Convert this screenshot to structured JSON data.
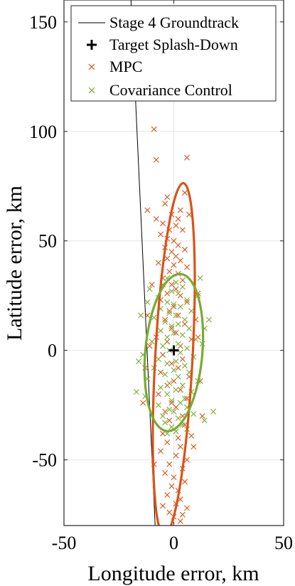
{
  "chart_data": {
    "type": "scatter",
    "xlabel": "Longitude error, km",
    "ylabel": "Latitude error, km",
    "xlim": [
      -50,
      50
    ],
    "ylim": [
      -80,
      160
    ],
    "xticks": [
      -50,
      0,
      50
    ],
    "yticks": [
      -50,
      0,
      50,
      100,
      150
    ],
    "grid": true,
    "legend_position": "top",
    "colors": {
      "mpc": "#d95319",
      "cov": "#77ac30",
      "groundtrack": "#000000",
      "target": "#000000"
    },
    "groundtrack": {
      "name": "Stage 4 Groundtrack",
      "x": [
        -19.5,
        -8.5
      ],
      "y": [
        160,
        -80
      ]
    },
    "target": {
      "name": "Target Splash-Down",
      "x": 0,
      "y": 0
    },
    "ellipses": [
      {
        "series": "MPC",
        "cx": 0,
        "cy": -4,
        "rx": 8.5,
        "ry": 80.5,
        "tilt_deg": 3.1
      },
      {
        "series": "Covariance Control",
        "cx": 0,
        "cy": -1,
        "rx": 13,
        "ry": 36,
        "tilt_deg": 5
      }
    ],
    "series": [
      {
        "name": "MPC",
        "points": [
          [
            -9,
            101
          ],
          [
            -8,
            87
          ],
          [
            6,
            88
          ],
          [
            5,
            72
          ],
          [
            -3,
            70
          ],
          [
            -4,
            67
          ],
          [
            3,
            64
          ],
          [
            -12,
            64
          ],
          [
            -1,
            62
          ],
          [
            2,
            60
          ],
          [
            -5,
            58
          ],
          [
            1,
            57
          ],
          [
            -2,
            55
          ],
          [
            4,
            55
          ],
          [
            -6,
            53
          ],
          [
            -3,
            51
          ],
          [
            0,
            50
          ],
          [
            2,
            48
          ],
          [
            -4,
            47
          ],
          [
            5,
            46
          ],
          [
            -1,
            45
          ],
          [
            1,
            43
          ],
          [
            -3,
            42
          ],
          [
            3,
            41
          ],
          [
            -7,
            40
          ],
          [
            0,
            39
          ],
          [
            6,
            38
          ],
          [
            -2,
            36
          ],
          [
            2,
            35
          ],
          [
            -5,
            33
          ],
          [
            4,
            32
          ],
          [
            -1,
            30
          ],
          [
            1,
            28
          ],
          [
            -3,
            26
          ],
          [
            3,
            25
          ],
          [
            -6,
            23
          ],
          [
            6,
            22
          ],
          [
            0,
            20
          ],
          [
            -2,
            18
          ],
          [
            2,
            16
          ],
          [
            -4,
            14
          ],
          [
            5,
            12
          ],
          [
            -1,
            10
          ],
          [
            1,
            8
          ],
          [
            -8,
            6
          ],
          [
            8,
            5
          ],
          [
            -3,
            4
          ],
          [
            3,
            2
          ],
          [
            -5,
            -2
          ],
          [
            4,
            -4
          ],
          [
            -1,
            -6
          ],
          [
            2,
            -8
          ],
          [
            -6,
            -10
          ],
          [
            7,
            -12
          ],
          [
            0,
            -14
          ],
          [
            -3,
            -16
          ],
          [
            3,
            -18
          ],
          [
            -7,
            -20
          ],
          [
            6,
            -22
          ],
          [
            -1,
            -24
          ],
          [
            1,
            -26
          ],
          [
            -4,
            -28
          ],
          [
            4,
            -30
          ],
          [
            -2,
            -32
          ],
          [
            5,
            -34
          ],
          [
            0,
            -36
          ],
          [
            -5,
            -38
          ],
          [
            8,
            -39
          ],
          [
            2,
            -40
          ],
          [
            -3,
            -42
          ],
          [
            3,
            -44
          ],
          [
            -6,
            -46
          ],
          [
            1,
            -48
          ],
          [
            6,
            -50
          ],
          [
            -2,
            -52
          ],
          [
            4,
            -54
          ],
          [
            -4,
            -56
          ],
          [
            0,
            -58
          ],
          [
            5,
            -60
          ],
          [
            -1,
            -62
          ],
          [
            2,
            -64
          ],
          [
            -3,
            -66
          ],
          [
            3,
            -68
          ],
          [
            1,
            -70
          ],
          [
            -5,
            -71
          ],
          [
            6,
            -72
          ],
          [
            -2,
            -74
          ],
          [
            4,
            -75
          ],
          [
            0,
            -76
          ],
          [
            3,
            -78
          ],
          [
            -13,
            -8
          ],
          [
            -11,
            2
          ],
          [
            11,
            6
          ],
          [
            12,
            -14
          ],
          [
            10,
            14
          ],
          [
            -12,
            16
          ],
          [
            11,
            26
          ],
          [
            -10,
            30
          ],
          [
            -14,
            -24
          ],
          [
            13,
            -30
          ],
          [
            9,
            -44
          ],
          [
            -9,
            -52
          ],
          [
            7,
            62
          ],
          [
            -8,
            60
          ]
        ]
      },
      {
        "name": "Covariance Control",
        "points": [
          [
            -3,
            33
          ],
          [
            1,
            31
          ],
          [
            -5,
            30
          ],
          [
            4,
            29
          ],
          [
            -1,
            27
          ],
          [
            2,
            26
          ],
          [
            -7,
            24
          ],
          [
            6,
            23
          ],
          [
            -3,
            22
          ],
          [
            0,
            21
          ],
          [
            3,
            20
          ],
          [
            -6,
            19
          ],
          [
            8,
            18
          ],
          [
            -2,
            17
          ],
          [
            1,
            16
          ],
          [
            -9,
            15
          ],
          [
            5,
            14
          ],
          [
            -4,
            13
          ],
          [
            2,
            12
          ],
          [
            -1,
            11
          ],
          [
            7,
            10
          ],
          [
            -6,
            9
          ],
          [
            0,
            8
          ],
          [
            4,
            7
          ],
          [
            -3,
            6
          ],
          [
            10,
            5
          ],
          [
            -10,
            4
          ],
          [
            2,
            3
          ],
          [
            -5,
            2
          ],
          [
            6,
            1
          ],
          [
            -2,
            0
          ],
          [
            3,
            -1
          ],
          [
            -14,
            -2
          ],
          [
            9,
            -3
          ],
          [
            -7,
            -4
          ],
          [
            1,
            -5
          ],
          [
            -3,
            -6
          ],
          [
            5,
            -7
          ],
          [
            -9,
            -8
          ],
          [
            0,
            -9
          ],
          [
            7,
            -10
          ],
          [
            -4,
            -11
          ],
          [
            2,
            -12
          ],
          [
            -12,
            -13
          ],
          [
            11,
            -14
          ],
          [
            -2,
            -15
          ],
          [
            4,
            -16
          ],
          [
            -6,
            -17
          ],
          [
            1,
            -18
          ],
          [
            8,
            -19
          ],
          [
            -3,
            -20
          ],
          [
            -13,
            -21
          ],
          [
            5,
            -22
          ],
          [
            -1,
            -23
          ],
          [
            3,
            -24
          ],
          [
            -7,
            -25
          ],
          [
            6,
            -26
          ],
          [
            -2,
            -27
          ],
          [
            0,
            -28
          ],
          [
            9,
            -29
          ],
          [
            -5,
            -30
          ],
          [
            2,
            -31
          ],
          [
            -4,
            -33
          ],
          [
            4,
            -34
          ],
          [
            -1,
            -35
          ],
          [
            6,
            -36
          ],
          [
            1,
            -37
          ],
          [
            -3,
            -38
          ],
          [
            12,
            33
          ],
          [
            16,
            14
          ],
          [
            18,
            -28
          ],
          [
            -16,
            -5
          ],
          [
            -15,
            16
          ],
          [
            14,
            10
          ],
          [
            -17,
            -19
          ],
          [
            14,
            -32
          ],
          [
            11,
            25
          ],
          [
            -11,
            28
          ],
          [
            13,
            3
          ],
          [
            -12,
            22
          ]
        ]
      }
    ]
  }
}
